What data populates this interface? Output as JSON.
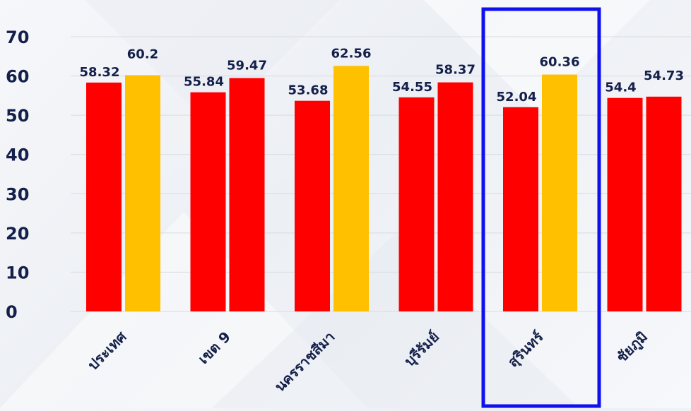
{
  "chart_data": {
    "type": "bar",
    "categories": [
      "ประเทศ",
      "เขต 9",
      "นครราชสีมา",
      "บุรีรัมย์",
      "สุรินทร์",
      "ชัยภูมิ"
    ],
    "series": [
      {
        "values": [
          58.32,
          55.84,
          53.68,
          54.55,
          52.04,
          54.4
        ]
      },
      {
        "values": [
          60.2,
          59.47,
          62.56,
          58.37,
          60.36,
          54.73
        ]
      }
    ],
    "value_labels": [
      [
        "58.32",
        "55.84",
        "53.68",
        "54.55",
        "52.04",
        "54.4"
      ],
      [
        "60.2",
        "59.47",
        "62.56",
        "58.37",
        "60.36",
        "54.73"
      ]
    ],
    "ylim": [
      0,
      70
    ],
    "yticks": [
      "0",
      "10",
      "20",
      "30",
      "40",
      "50",
      "60",
      "70"
    ],
    "grid": true,
    "highlighted_category": "สุรินทร์",
    "colors": {
      "series1": "#ff0000",
      "series2_default": "#ffc000",
      "series2_alt": "#ff0000",
      "highlight_box": "#1010ee",
      "text": "#14204a",
      "grid": "#d9dbe0"
    },
    "series2_bar_colors": [
      "#ffc000",
      "#ff0000",
      "#ffc000",
      "#ff0000",
      "#ffc000",
      "#ff0000"
    ]
  }
}
